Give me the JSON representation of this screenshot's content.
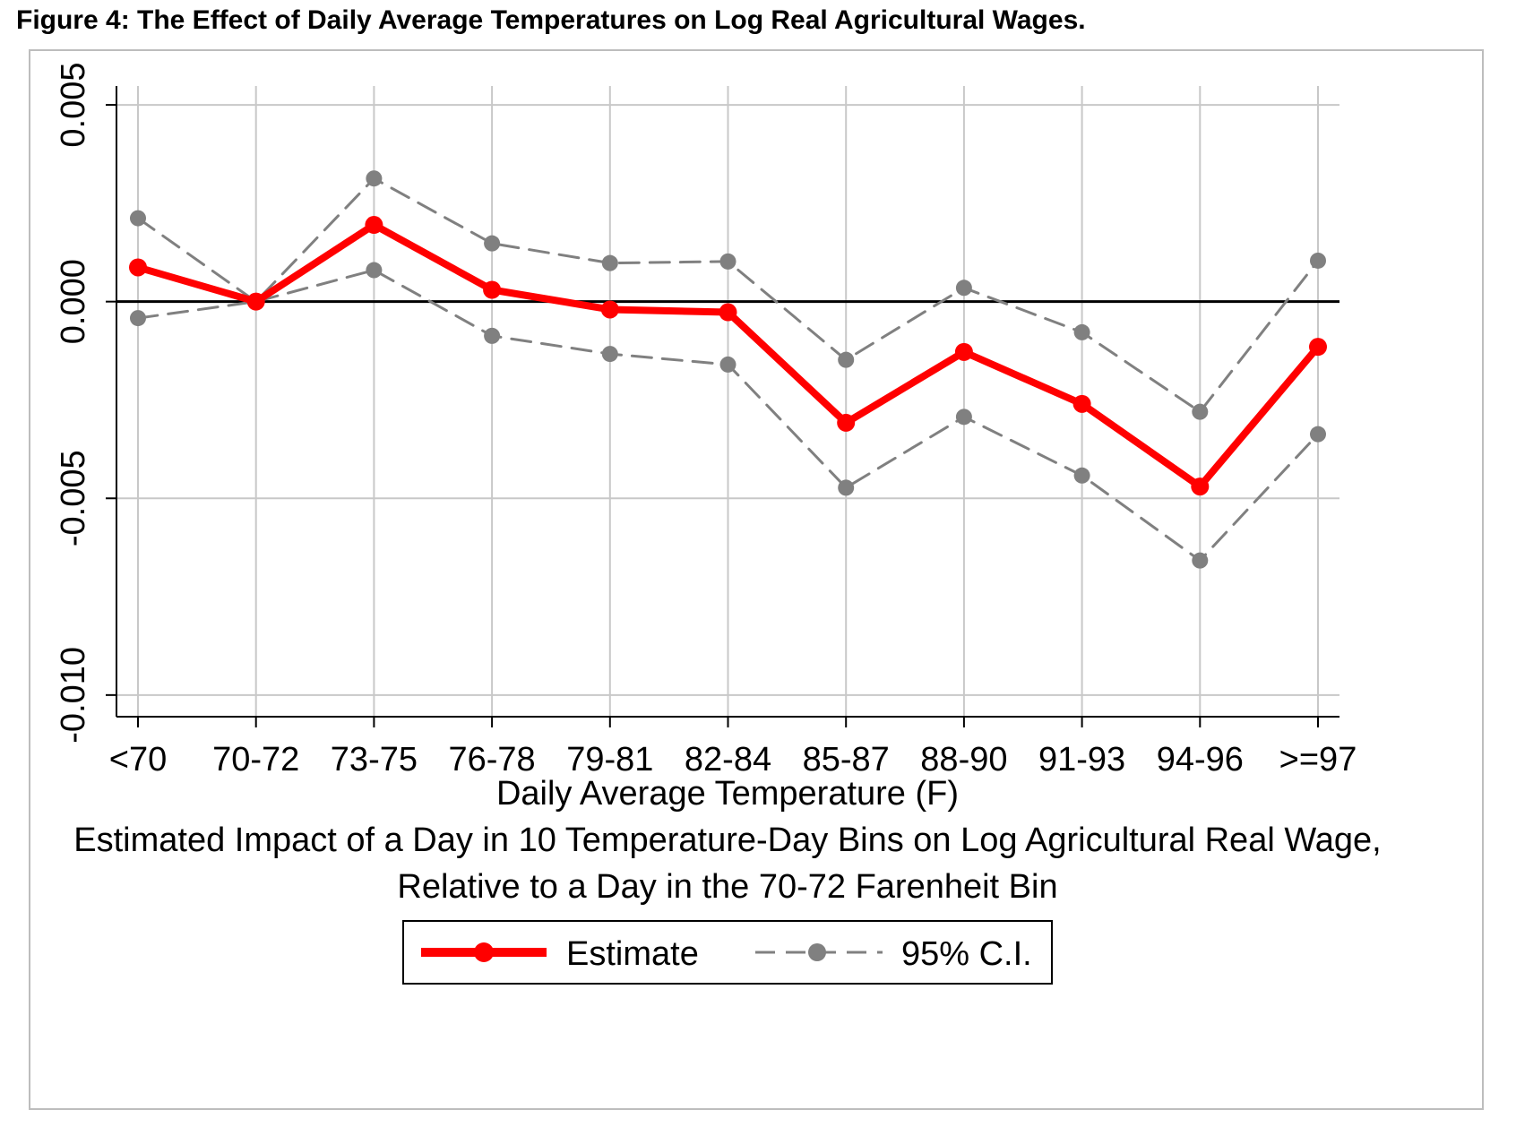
{
  "figure_title": "Figure 4: The Effect of Daily Average Temperatures on Log Real Agricultural Wages.",
  "chart_data": {
    "type": "line",
    "categories": [
      "<70",
      "70-72",
      "73-75",
      "76-78",
      "79-81",
      "82-84",
      "85-87",
      "88-90",
      "91-93",
      "94-96",
      ">=97"
    ],
    "series": [
      {
        "name": "Estimate",
        "color": "#ff0000",
        "style": "solid",
        "marker": "circle",
        "values": [
          0.00087,
          0.0,
          0.00195,
          0.0003,
          -0.0002,
          -0.00027,
          -0.00308,
          -0.00128,
          -0.0026,
          -0.0047,
          -0.00115
        ]
      },
      {
        "name": "95% C.I.",
        "role": "upper",
        "color": "#808080",
        "style": "dashed",
        "marker": "circle",
        "values": [
          0.00212,
          0.0,
          0.00313,
          0.00148,
          0.00098,
          0.00102,
          -0.00148,
          0.00035,
          -0.00078,
          -0.0028,
          0.00104
        ]
      },
      {
        "name": "95% C.I.",
        "role": "lower",
        "color": "#808080",
        "style": "dashed",
        "marker": "circle",
        "values": [
          -0.00042,
          0.0,
          0.0008,
          -0.00087,
          -0.00133,
          -0.0016,
          -0.00473,
          -0.00293,
          -0.00442,
          -0.00658,
          -0.00337
        ]
      }
    ],
    "yticks": [
      "0.005",
      "0.000",
      "-0.005",
      "-0.010"
    ],
    "ytick_values": [
      0.005,
      0.0,
      -0.005,
      -0.01
    ],
    "ylim": [
      -0.01055,
      0.00548
    ],
    "xlabel": "Daily Average Temperature (F)",
    "ylabel": "",
    "subtitle_lines": [
      "Estimated Impact of a Day in 10 Temperature-Day Bins on Log Agricultural Real Wage,",
      "Relative to a Day in the 70-72 Farenheit Bin"
    ],
    "reference_line_y": 0.0,
    "grid": true,
    "legend": {
      "placement": "bottom-center",
      "entries": [
        "Estimate",
        "95% C.I."
      ]
    }
  }
}
